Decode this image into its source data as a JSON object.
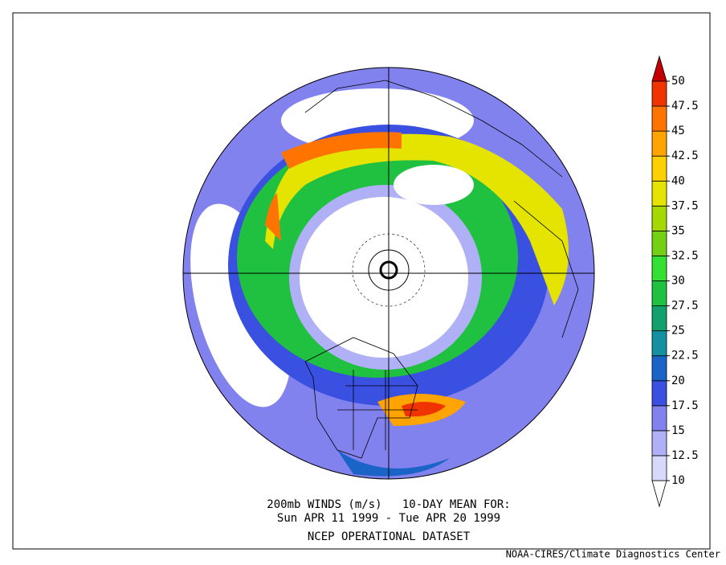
{
  "caption": {
    "line1": "200mb WINDS (m/s)   10-DAY MEAN FOR:",
    "line2": "Sun APR 11 1999 - Tue APR 20 1999",
    "line3": "NCEP OPERATIONAL DATASET"
  },
  "credit": "NOAA-CIRES/Climate Diagnostics Center",
  "colorbar": {
    "levels": [
      10,
      12.5,
      15,
      17.5,
      20,
      22.5,
      25,
      27.5,
      30,
      32.5,
      35,
      37.5,
      40,
      42.5,
      45,
      47.5,
      50
    ],
    "colors": [
      "#ffffff",
      "#d8d8fc",
      "#b0b0f6",
      "#8282ee",
      "#3a50e0",
      "#1a64c8",
      "#1490a0",
      "#12a06c",
      "#20c040",
      "#34e034",
      "#74d014",
      "#a4d800",
      "#e4e400",
      "#ffd000",
      "#ffa400",
      "#ff7400",
      "#f03400",
      "#c40000"
    ]
  }
}
